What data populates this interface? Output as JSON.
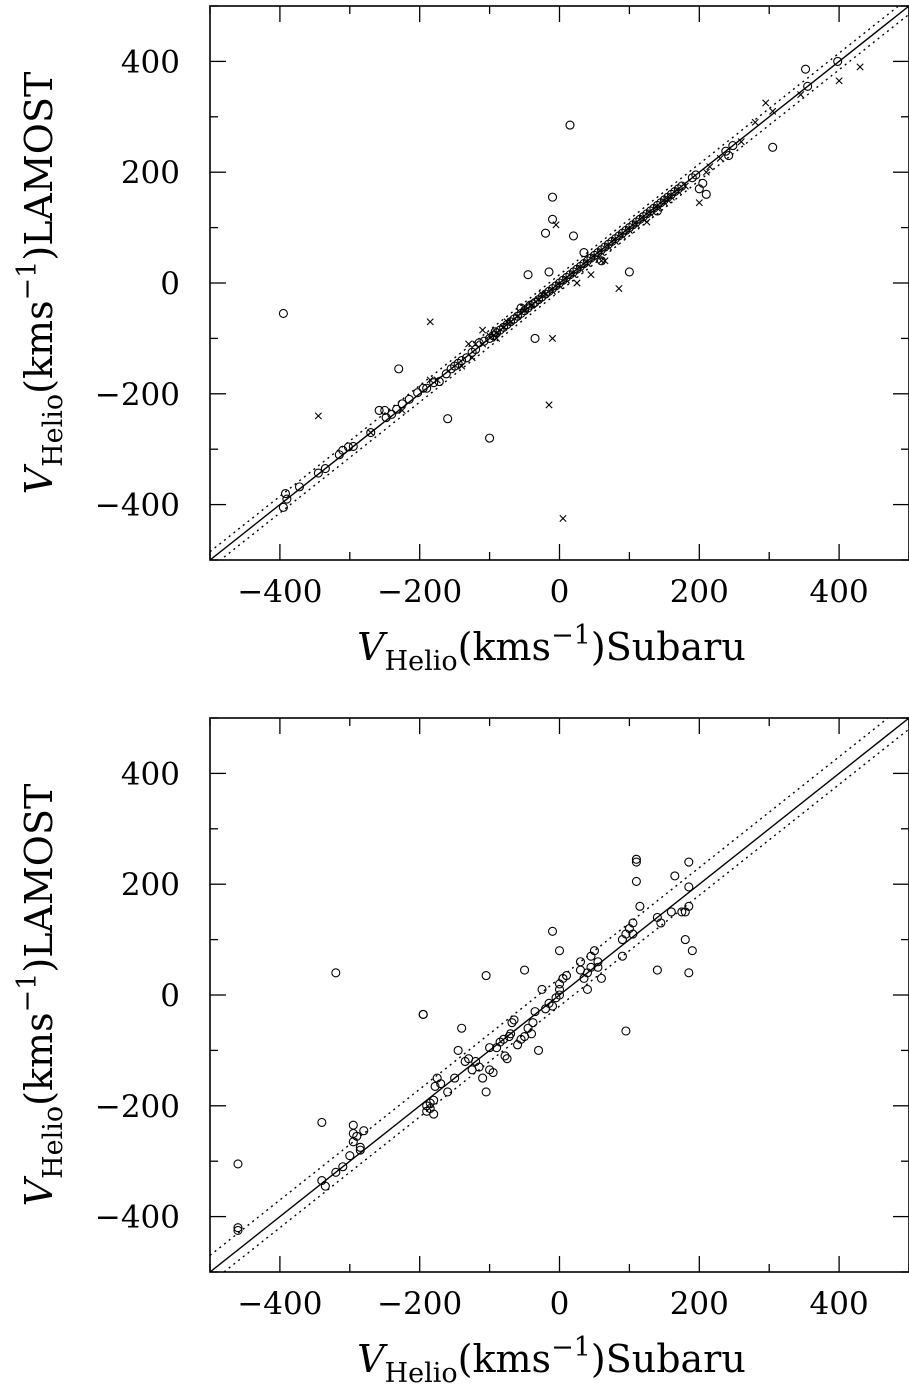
{
  "chart_data": [
    {
      "type": "scatter",
      "xlabel": "V_Helio(kms^-1)Subaru",
      "ylabel": "V_Helio(kms^-1)LAMOST",
      "xlim": [
        -500,
        500
      ],
      "ylim": [
        -500,
        500
      ],
      "xticks": [
        -400,
        -200,
        0,
        200,
        400
      ],
      "yticks": [
        -400,
        -200,
        0,
        200,
        400
      ],
      "x_tick_labels": [
        "−400",
        "−200",
        "0",
        "200",
        "400"
      ],
      "y_tick_labels": [
        "−400",
        "−200",
        "0",
        "200",
        "400"
      ],
      "ylabel_parts": {
        "v": "V",
        "sub": "Helio",
        "pre": "(kms",
        "sup": "−1",
        "post": ")LAMOST"
      },
      "xlabel_parts": {
        "v": "V",
        "sub": "Helio",
        "pre": "(kms",
        "sup": "−1",
        "post": ")Subaru"
      },
      "lines": [
        {
          "style": "solid",
          "slope": 1,
          "intercept": 0
        },
        {
          "style": "dotted",
          "slope": 1,
          "intercept": 15
        },
        {
          "style": "dotted",
          "slope": 1,
          "intercept": -15
        }
      ],
      "series": [
        {
          "marker": "circle",
          "x": [
            -392,
            -395,
            -390,
            -372,
            -345,
            -335,
            -315,
            -310,
            -302,
            -295,
            -270,
            -258,
            -248,
            -240,
            -233,
            -225,
            -215,
            -203,
            -195,
            -190,
            -180,
            -172,
            -162,
            -155,
            -150,
            -145,
            -140,
            -133,
            -125,
            -120,
            -115,
            -108,
            -100,
            -95,
            -92,
            -90,
            -85,
            -80,
            -75,
            -70,
            -65,
            -60,
            -55,
            -50,
            -45,
            -42,
            -38,
            -35,
            -30,
            -25,
            -20,
            -15,
            -10,
            -5,
            0,
            5,
            10,
            15,
            20,
            25,
            30,
            35,
            40,
            45,
            50,
            55,
            60,
            65,
            70,
            75,
            80,
            85,
            90,
            95,
            100,
            105,
            110,
            115,
            120,
            125,
            130,
            135,
            140,
            145,
            150,
            155,
            160,
            165,
            170,
            175,
            190,
            195,
            200,
            205,
            210,
            238,
            242,
            248,
            305,
            352,
            355,
            398,
            15,
            -10,
            -10,
            -35,
            -15,
            20,
            -230,
            -395,
            -160,
            -100,
            -20,
            -45,
            35,
            60,
            -55,
            100,
            140,
            -250
          ],
          "y": [
            -380,
            -405,
            -390,
            -368,
            -343,
            -335,
            -310,
            -302,
            -296,
            -295,
            -270,
            -230,
            -243,
            -237,
            -228,
            -218,
            -210,
            -198,
            -190,
            -190,
            -180,
            -178,
            -164,
            -155,
            -150,
            -145,
            -140,
            -135,
            -125,
            -120,
            -108,
            -105,
            -100,
            -95,
            -88,
            -90,
            -85,
            -80,
            -75,
            -70,
            -65,
            -60,
            -55,
            -50,
            -45,
            -40,
            -38,
            -35,
            -30,
            -25,
            -20,
            -15,
            -10,
            -5,
            0,
            5,
            10,
            15,
            20,
            25,
            30,
            35,
            40,
            45,
            50,
            55,
            60,
            65,
            70,
            75,
            80,
            85,
            90,
            95,
            100,
            105,
            110,
            115,
            120,
            125,
            130,
            135,
            140,
            145,
            150,
            155,
            160,
            165,
            170,
            175,
            190,
            195,
            170,
            180,
            160,
            238,
            230,
            248,
            245,
            386,
            355,
            400,
            285,
            155,
            115,
            -100,
            20,
            85,
            -155,
            -55,
            -245,
            -280,
            90,
            15,
            55,
            40,
            -45,
            20,
            130,
            -230
          ]
        },
        {
          "marker": "cross",
          "x": [
            -345,
            -270,
            -225,
            -185,
            -175,
            -140,
            -125,
            -120,
            -110,
            -100,
            -90,
            -80,
            -70,
            -60,
            -50,
            -40,
            -30,
            -20,
            -10,
            0,
            10,
            20,
            30,
            40,
            50,
            60,
            70,
            80,
            90,
            100,
            110,
            120,
            130,
            140,
            150,
            160,
            170,
            180,
            200,
            210,
            215,
            230,
            260,
            280,
            295,
            305,
            345,
            400,
            430,
            -185,
            -15,
            -10,
            5,
            -5,
            85,
            60,
            -130,
            -110,
            -90,
            -75,
            -50,
            -25,
            25,
            45,
            65,
            125,
            155
          ],
          "y": [
            -240,
            -270,
            -230,
            -70,
            -175,
            -150,
            -135,
            -110,
            -110,
            -95,
            -90,
            -80,
            -70,
            -60,
            -50,
            -40,
            -30,
            -20,
            -15,
            -5,
            5,
            15,
            25,
            35,
            45,
            55,
            65,
            75,
            85,
            95,
            105,
            115,
            125,
            135,
            145,
            155,
            165,
            175,
            145,
            200,
            210,
            225,
            255,
            290,
            325,
            310,
            340,
            365,
            390,
            -175,
            -220,
            -100,
            -425,
            105,
            -10,
            40,
            -110,
            -85,
            -100,
            -70,
            -45,
            -20,
            0,
            15,
            40,
            110,
            150
          ]
        }
      ]
    },
    {
      "type": "scatter",
      "xlabel": "V_Helio(kms^-1)Subaru",
      "ylabel": "V_Helio(kms^-1)LAMOST",
      "xlim": [
        -500,
        500
      ],
      "ylim": [
        -500,
        500
      ],
      "xticks": [
        -400,
        -200,
        0,
        200,
        400
      ],
      "yticks": [
        -400,
        -200,
        0,
        200,
        400
      ],
      "x_tick_labels": [
        "−400",
        "−200",
        "0",
        "200",
        "400"
      ],
      "y_tick_labels": [
        "−400",
        "−200",
        "0",
        "200",
        "400"
      ],
      "ylabel_parts": {
        "v": "V",
        "sub": "Helio",
        "pre": "(kms",
        "sup": "−1",
        "post": ")LAMOST"
      },
      "xlabel_parts": {
        "v": "V",
        "sub": "Helio",
        "pre": "(kms",
        "sup": "−1",
        "post": ")Subaru"
      },
      "lines": [
        {
          "style": "solid",
          "slope": 1,
          "intercept": 0
        },
        {
          "style": "dotted",
          "slope": 1,
          "intercept": 30
        },
        {
          "style": "dotted",
          "slope": 1,
          "intercept": -20
        }
      ],
      "series": [
        {
          "marker": "circle",
          "x": [
            -460,
            -460,
            -460,
            -340,
            -340,
            -335,
            -320,
            -310,
            -300,
            -295,
            -295,
            -295,
            -290,
            -285,
            -285,
            -280,
            -195,
            -195,
            -190,
            -190,
            -185,
            -185,
            -180,
            -180,
            -178,
            -175,
            -170,
            -160,
            -150,
            -145,
            -140,
            -135,
            -130,
            -125,
            -120,
            -115,
            -110,
            -105,
            -100,
            -100,
            -95,
            -90,
            -85,
            -80,
            -78,
            -75,
            -72,
            -70,
            -68,
            -65,
            -60,
            -55,
            -50,
            -45,
            -40,
            -38,
            -35,
            -30,
            -25,
            -20,
            -15,
            -10,
            -5,
            0,
            0,
            0,
            5,
            10,
            30,
            30,
            35,
            40,
            40,
            45,
            45,
            50,
            55,
            55,
            60,
            90,
            90,
            95,
            100,
            105,
            105,
            110,
            110,
            110,
            115,
            140,
            140,
            145,
            160,
            165,
            175,
            180,
            180,
            185,
            185,
            185,
            185,
            190,
            95,
            -320,
            -105,
            -10,
            0,
            -50
          ],
          "y": [
            -305,
            -420,
            -425,
            -230,
            -335,
            -345,
            -320,
            -310,
            -290,
            -250,
            -265,
            -235,
            -255,
            -275,
            -280,
            -245,
            -35,
            -35,
            -200,
            -210,
            -205,
            -195,
            -190,
            -215,
            -165,
            -150,
            -160,
            -175,
            -150,
            -100,
            -60,
            -120,
            -115,
            -135,
            -120,
            -130,
            -150,
            -175,
            -95,
            -135,
            -140,
            -95,
            -85,
            -80,
            -110,
            -115,
            -75,
            -70,
            -50,
            -45,
            -90,
            -80,
            -75,
            -60,
            -70,
            -50,
            -30,
            -100,
            10,
            -25,
            -15,
            -20,
            -5,
            0,
            10,
            20,
            30,
            35,
            60,
            45,
            30,
            10,
            40,
            50,
            70,
            80,
            60,
            50,
            30,
            70,
            100,
            110,
            120,
            130,
            110,
            240,
            245,
            205,
            160,
            140,
            45,
            130,
            150,
            215,
            150,
            100,
            150,
            160,
            240,
            195,
            40,
            80,
            -65,
            40,
            35,
            115,
            80,
            45
          ]
        }
      ]
    }
  ]
}
